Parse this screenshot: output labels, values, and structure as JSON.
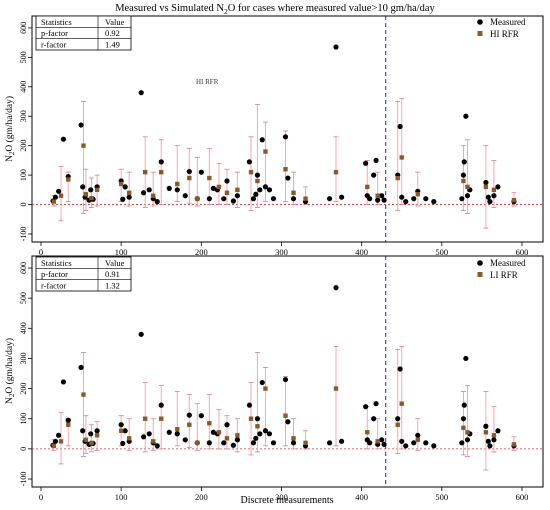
{
  "figure": {
    "title_parts": [
      "Measured vs Simulated N",
      "2",
      "O for cases where measured value>10 gm/ha/day"
    ],
    "xlabel": "Discrete measurements",
    "ylabel_parts": [
      "N",
      "2",
      "O (gm/ha/day)"
    ]
  },
  "colors": {
    "measured": "#000000",
    "simulated": "#8B5A2B",
    "errorbar": "#f4a6b4",
    "errorbar_cap": "#d97a90",
    "zero_line": "#c0392b",
    "vline": "#1f1fd0",
    "legend_text_sim": "#8B4513",
    "watermark": "#ff9de0"
  },
  "panels": [
    {
      "stats_header": [
        "Statistics",
        "Value"
      ],
      "stats_rows": [
        [
          "p-factor",
          "0.92"
        ],
        [
          "r-factor",
          "1.49"
        ]
      ],
      "legend": [
        "Measured",
        "HI RFR"
      ],
      "watermark": "HI RFR"
    },
    {
      "stats_header": [
        "Statistics",
        "Value"
      ],
      "stats_rows": [
        [
          "p-factor",
          "0.91"
        ],
        [
          "r-factor",
          "1.32"
        ]
      ],
      "legend": [
        "Measured",
        "LI RFR"
      ],
      "watermark": ""
    }
  ],
  "chart_data": [
    {
      "type": "scatter",
      "title": "Measured vs Simulated N2O for cases where measured value>10 gm/ha/day",
      "xlabel": "",
      "ylabel": "N2O (gm/ha/day)",
      "xlim": [
        0,
        620
      ],
      "ylim": [
        -100,
        620
      ],
      "xticks": [
        0,
        100,
        200,
        300,
        400,
        500,
        600
      ],
      "yticks": [
        -100,
        0,
        100,
        200,
        300,
        400,
        500,
        600
      ],
      "vline_x": 430,
      "hline_y": 0,
      "grid": false,
      "legend_position": "top-right",
      "series": [
        {
          "name": "Measured",
          "marker": "circle",
          "x": [
            15,
            18,
            22,
            28,
            34,
            50,
            52,
            55,
            60,
            62,
            65,
            70,
            100,
            102,
            105,
            110,
            125,
            128,
            135,
            140,
            145,
            150,
            160,
            170,
            180,
            185,
            195,
            200,
            210,
            215,
            220,
            228,
            232,
            240,
            245,
            260,
            265,
            268,
            270,
            273,
            276,
            280,
            285,
            290,
            305,
            308,
            315,
            330,
            360,
            368,
            375,
            405,
            407,
            410,
            415,
            418,
            420,
            425,
            428,
            445,
            448,
            450,
            455,
            465,
            470,
            480,
            490,
            525,
            527,
            528,
            530,
            532,
            535,
            555,
            558,
            560,
            565,
            570,
            590
          ],
          "y": [
            12,
            25,
            45,
            222,
            95,
            270,
            60,
            25,
            15,
            50,
            18,
            60,
            80,
            18,
            60,
            25,
            380,
            40,
            50,
            20,
            10,
            145,
            55,
            50,
            30,
            112,
            20,
            110,
            20,
            55,
            50,
            20,
            80,
            12,
            30,
            145,
            20,
            35,
            100,
            50,
            220,
            60,
            50,
            20,
            230,
            90,
            20,
            10,
            20,
            535,
            25,
            140,
            30,
            20,
            100,
            150,
            15,
            30,
            15,
            100,
            265,
            25,
            10,
            20,
            45,
            20,
            10,
            20,
            100,
            145,
            300,
            30,
            50,
            75,
            25,
            10,
            30,
            60,
            10
          ]
        },
        {
          "name": "HI RFR",
          "marker": "square",
          "x": [
            16,
            25,
            34,
            53,
            56,
            63,
            70,
            100,
            110,
            130,
            140,
            150,
            170,
            185,
            195,
            210,
            222,
            232,
            245,
            262,
            270,
            280,
            305,
            315,
            330,
            368,
            407,
            420,
            445,
            450,
            470,
            527,
            532,
            555,
            565,
            590
          ],
          "y": [
            10,
            30,
            85,
            200,
            35,
            22,
            50,
            70,
            40,
            110,
            30,
            110,
            70,
            90,
            20,
            90,
            60,
            40,
            50,
            110,
            80,
            180,
            120,
            40,
            20,
            110,
            60,
            30,
            90,
            160,
            35,
            80,
            60,
            60,
            50,
            15
          ]
        },
        {
          "name": "Upper bound",
          "marker": "cap",
          "x": [
            16,
            25,
            34,
            53,
            56,
            63,
            70,
            100,
            110,
            130,
            140,
            150,
            170,
            185,
            195,
            210,
            222,
            232,
            245,
            262,
            270,
            280,
            305,
            315,
            330,
            368,
            407,
            420,
            445,
            450,
            470,
            527,
            532,
            555,
            565,
            590
          ],
          "y": [
            30,
            130,
            110,
            350,
            120,
            90,
            100,
            120,
            110,
            230,
            110,
            220,
            200,
            190,
            160,
            190,
            140,
            120,
            110,
            230,
            340,
            280,
            250,
            110,
            60,
            230,
            150,
            110,
            350,
            360,
            110,
            200,
            220,
            200,
            150,
            40
          ]
        },
        {
          "name": "Lower bound",
          "marker": "cap",
          "x": [
            16,
            25,
            34,
            53,
            56,
            63,
            70,
            100,
            110,
            130,
            140,
            150,
            170,
            185,
            195,
            210,
            222,
            232,
            245,
            262,
            270,
            280,
            305,
            315,
            330,
            368,
            407,
            420,
            445,
            450,
            470,
            527,
            532,
            555,
            565,
            590
          ],
          "y": [
            -5,
            -55,
            10,
            -30,
            -20,
            -10,
            -5,
            10,
            -5,
            -10,
            -5,
            0,
            10,
            5,
            -5,
            0,
            0,
            0,
            -10,
            -20,
            -10,
            10,
            10,
            0,
            0,
            10,
            0,
            0,
            -20,
            0,
            -5,
            -20,
            -30,
            -80,
            -10,
            -5
          ]
        }
      ]
    },
    {
      "type": "scatter",
      "title": "",
      "xlabel": "Discrete measurements",
      "ylabel": "N2O (gm/ha/day)",
      "xlim": [
        0,
        620
      ],
      "ylim": [
        -100,
        620
      ],
      "xticks": [
        0,
        100,
        200,
        300,
        400,
        500,
        600
      ],
      "yticks": [
        -100,
        0,
        100,
        200,
        300,
        400,
        500,
        600
      ],
      "vline_x": 430,
      "hline_y": 0,
      "grid": false,
      "legend_position": "top-right",
      "series": [
        {
          "name": "Measured",
          "marker": "circle",
          "x": [
            15,
            18,
            22,
            28,
            34,
            50,
            52,
            55,
            60,
            62,
            65,
            70,
            100,
            102,
            105,
            110,
            125,
            128,
            135,
            140,
            145,
            150,
            160,
            170,
            180,
            185,
            195,
            200,
            210,
            215,
            220,
            228,
            232,
            240,
            245,
            260,
            265,
            268,
            270,
            273,
            276,
            280,
            285,
            290,
            305,
            308,
            315,
            330,
            360,
            368,
            375,
            405,
            407,
            410,
            415,
            418,
            420,
            425,
            428,
            445,
            448,
            450,
            455,
            465,
            470,
            480,
            490,
            525,
            527,
            528,
            530,
            532,
            535,
            555,
            558,
            560,
            565,
            570,
            590
          ],
          "y": [
            12,
            25,
            45,
            222,
            95,
            270,
            60,
            25,
            15,
            50,
            18,
            60,
            80,
            18,
            60,
            25,
            380,
            40,
            50,
            20,
            10,
            145,
            55,
            50,
            30,
            112,
            20,
            110,
            20,
            55,
            50,
            20,
            80,
            12,
            30,
            145,
            20,
            35,
            100,
            50,
            220,
            60,
            50,
            20,
            230,
            90,
            20,
            10,
            20,
            535,
            25,
            140,
            30,
            20,
            100,
            150,
            15,
            30,
            15,
            100,
            265,
            25,
            10,
            20,
            45,
            20,
            10,
            20,
            100,
            145,
            300,
            30,
            50,
            75,
            25,
            10,
            30,
            60,
            10
          ]
        },
        {
          "name": "LI RFR",
          "marker": "square",
          "x": [
            16,
            25,
            34,
            53,
            56,
            63,
            70,
            100,
            110,
            130,
            140,
            150,
            170,
            185,
            195,
            210,
            222,
            232,
            245,
            262,
            270,
            280,
            305,
            315,
            330,
            368,
            407,
            420,
            445,
            450,
            470,
            527,
            532,
            555,
            565,
            590
          ],
          "y": [
            10,
            25,
            80,
            180,
            30,
            20,
            45,
            60,
            35,
            100,
            25,
            100,
            65,
            80,
            20,
            85,
            55,
            35,
            45,
            100,
            75,
            200,
            110,
            35,
            20,
            200,
            55,
            25,
            80,
            150,
            30,
            70,
            55,
            55,
            45,
            15
          ]
        },
        {
          "name": "Upper bound",
          "marker": "cap",
          "x": [
            16,
            25,
            34,
            53,
            56,
            63,
            70,
            100,
            110,
            130,
            140,
            150,
            170,
            185,
            195,
            210,
            222,
            232,
            245,
            262,
            270,
            280,
            305,
            315,
            330,
            368,
            407,
            420,
            445,
            450,
            470,
            527,
            532,
            555,
            565,
            590
          ],
          "y": [
            30,
            120,
            100,
            320,
            110,
            80,
            90,
            110,
            100,
            220,
            100,
            210,
            190,
            180,
            150,
            180,
            130,
            110,
            100,
            220,
            320,
            270,
            240,
            100,
            60,
            340,
            140,
            100,
            330,
            340,
            100,
            190,
            210,
            190,
            140,
            40
          ]
        },
        {
          "name": "Lower bound",
          "marker": "cap",
          "x": [
            16,
            25,
            34,
            53,
            56,
            63,
            70,
            100,
            110,
            130,
            140,
            150,
            170,
            185,
            195,
            210,
            222,
            232,
            245,
            262,
            270,
            280,
            305,
            315,
            330,
            368,
            407,
            420,
            445,
            450,
            470,
            527,
            532,
            555,
            565,
            590
          ],
          "y": [
            -5,
            -50,
            10,
            -25,
            -15,
            -10,
            -5,
            10,
            -5,
            -10,
            -5,
            0,
            10,
            5,
            -5,
            0,
            0,
            0,
            -10,
            -20,
            -10,
            10,
            10,
            0,
            0,
            10,
            0,
            0,
            -15,
            0,
            -5,
            -20,
            -25,
            -70,
            -10,
            -5
          ]
        }
      ]
    }
  ]
}
